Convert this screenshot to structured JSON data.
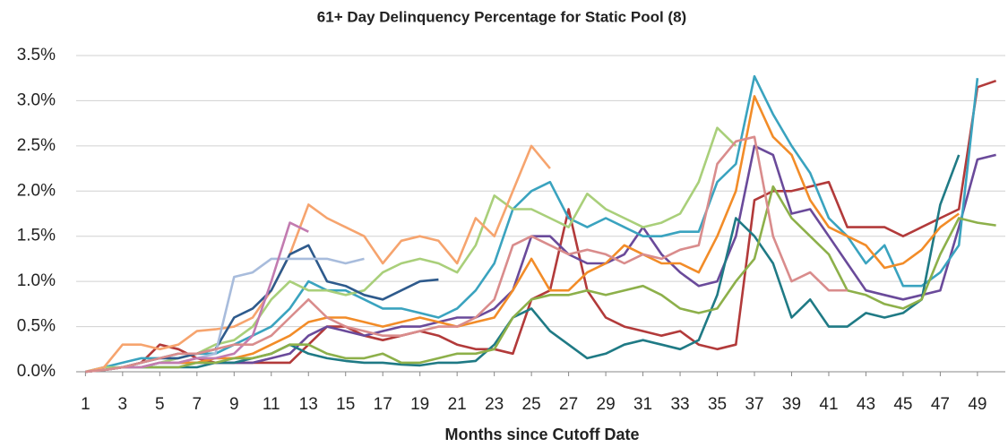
{
  "chart_data": {
    "type": "line",
    "title": "61+ Day Delinquency Percentage for Static Pool (8)",
    "x_label": "Months since Cutoff Date",
    "x": [
      1,
      2,
      3,
      4,
      5,
      6,
      7,
      8,
      9,
      10,
      11,
      12,
      13,
      14,
      15,
      16,
      17,
      18,
      19,
      20,
      21,
      22,
      23,
      24,
      25,
      26,
      27,
      28,
      29,
      30,
      31,
      32,
      33,
      34,
      35,
      36,
      37,
      38,
      39,
      40,
      41,
      42,
      43,
      44,
      45,
      46,
      47,
      48,
      49,
      50
    ],
    "xlim": [
      0.5,
      50.5
    ],
    "xticks": [
      1,
      3,
      5,
      7,
      9,
      11,
      13,
      15,
      17,
      19,
      21,
      23,
      25,
      27,
      29,
      31,
      33,
      35,
      37,
      39,
      41,
      43,
      45,
      47,
      49
    ],
    "ylim": [
      0,
      3.5
    ],
    "yticks": [
      {
        "value": 0,
        "label": "0.0%"
      },
      {
        "value": 0.5,
        "label": "0.5%"
      },
      {
        "value": 1,
        "label": "1.0%"
      },
      {
        "value": 1.5,
        "label": "1.5%"
      },
      {
        "value": 2,
        "label": "2.0%"
      },
      {
        "value": 2.5,
        "label": "2.5%"
      },
      {
        "value": 3,
        "label": "3.0%"
      },
      {
        "value": 3.5,
        "label": "3.5%"
      }
    ],
    "grid": true,
    "series": [
      {
        "color": "#b23a3a",
        "values": [
          0,
          0.02,
          0.05,
          0.1,
          0.3,
          0.25,
          0.15,
          0.1,
          0.1,
          0.1,
          0.1,
          0.1,
          0.3,
          0.5,
          0.5,
          0.4,
          0.35,
          0.4,
          0.45,
          0.4,
          0.3,
          0.25,
          0.25,
          0.2,
          0.8,
          0.9,
          1.8,
          0.9,
          0.6,
          0.5,
          0.45,
          0.4,
          0.45,
          0.3,
          0.25,
          0.3,
          1.9,
          2.0,
          2.0,
          2.05,
          2.1,
          1.6,
          1.6,
          1.6,
          1.5,
          1.6,
          1.7,
          1.8,
          3.15,
          3.22
        ]
      },
      {
        "color": "#6a4a9a",
        "values": [
          0,
          0.02,
          0.05,
          0.05,
          0.1,
          0.1,
          0.1,
          0.1,
          0.1,
          0.1,
          0.15,
          0.2,
          0.4,
          0.5,
          0.45,
          0.4,
          0.45,
          0.5,
          0.5,
          0.55,
          0.6,
          0.6,
          0.7,
          0.9,
          1.5,
          1.5,
          1.3,
          1.2,
          1.2,
          1.3,
          1.6,
          1.3,
          1.1,
          0.95,
          1.0,
          1.5,
          2.5,
          2.4,
          1.75,
          1.8,
          1.5,
          1.2,
          0.9,
          0.85,
          0.8,
          0.85,
          0.9,
          1.6,
          2.35,
          2.4
        ]
      },
      {
        "color": "#3aa3bf",
        "values": [
          0,
          0.05,
          0.1,
          0.15,
          0.15,
          0.2,
          0.2,
          0.2,
          0.3,
          0.4,
          0.5,
          0.7,
          1.0,
          0.9,
          0.9,
          0.8,
          0.7,
          0.7,
          0.65,
          0.6,
          0.7,
          0.9,
          1.2,
          1.8,
          2.0,
          2.1,
          1.7,
          1.6,
          1.7,
          1.6,
          1.5,
          1.5,
          1.55,
          1.55,
          2.1,
          2.3,
          3.27,
          2.85,
          2.5,
          2.2,
          1.7,
          1.5,
          1.2,
          1.4,
          0.95,
          0.95,
          1.1,
          1.4,
          3.25,
          null
        ]
      },
      {
        "color": "#1f7a85",
        "values": [
          0,
          0.02,
          0.05,
          0.05,
          0.05,
          0.05,
          0.05,
          0.1,
          0.1,
          0.15,
          0.2,
          0.3,
          0.2,
          0.15,
          0.12,
          0.1,
          0.1,
          0.08,
          0.07,
          0.1,
          0.1,
          0.12,
          0.3,
          0.6,
          0.7,
          0.45,
          0.3,
          0.15,
          0.2,
          0.3,
          0.35,
          0.3,
          0.25,
          0.35,
          0.85,
          1.7,
          1.5,
          1.2,
          0.6,
          0.8,
          0.5,
          0.5,
          0.65,
          0.6,
          0.65,
          0.8,
          1.85,
          2.4,
          null,
          null
        ]
      },
      {
        "color": "#f28c28",
        "values": [
          0,
          0.02,
          0.05,
          0.05,
          0.1,
          0.1,
          0.1,
          0.15,
          0.15,
          0.2,
          0.3,
          0.4,
          0.55,
          0.6,
          0.6,
          0.55,
          0.5,
          0.55,
          0.6,
          0.55,
          0.5,
          0.55,
          0.6,
          0.9,
          1.25,
          0.9,
          0.9,
          1.1,
          1.2,
          1.4,
          1.3,
          1.2,
          1.2,
          1.1,
          1.5,
          2.0,
          3.05,
          2.6,
          2.4,
          1.9,
          1.6,
          1.5,
          1.4,
          1.15,
          1.2,
          1.35,
          1.6,
          1.75,
          null,
          null
        ]
      },
      {
        "color": "#8db04a",
        "values": [
          0,
          0.02,
          0.05,
          0.05,
          0.05,
          0.05,
          0.1,
          0.1,
          0.15,
          0.15,
          0.2,
          0.3,
          0.3,
          0.2,
          0.15,
          0.15,
          0.2,
          0.1,
          0.1,
          0.15,
          0.2,
          0.2,
          0.25,
          0.6,
          0.8,
          0.85,
          0.85,
          0.9,
          0.85,
          0.9,
          0.95,
          0.85,
          0.7,
          0.65,
          0.7,
          1.0,
          1.25,
          2.05,
          1.7,
          1.5,
          1.3,
          0.9,
          0.85,
          0.75,
          0.7,
          0.8,
          1.3,
          1.7,
          1.65,
          1.62
        ]
      },
      {
        "color": "#a9cf7a",
        "values": [
          0,
          0.05,
          0.05,
          0.05,
          0.1,
          0.15,
          0.2,
          0.3,
          0.35,
          0.5,
          0.8,
          1.0,
          0.9,
          0.9,
          0.85,
          0.9,
          1.1,
          1.2,
          1.25,
          1.2,
          1.1,
          1.4,
          1.95,
          1.8,
          1.8,
          1.7,
          1.6,
          1.97,
          1.8,
          1.7,
          1.6,
          1.65,
          1.75,
          2.1,
          2.7,
          2.5,
          null,
          null,
          null,
          null,
          null,
          null,
          null,
          null,
          null,
          null,
          null,
          null,
          null,
          null
        ]
      },
      {
        "color": "#f6a46e",
        "values": [
          0,
          0.05,
          0.3,
          0.3,
          0.25,
          0.3,
          0.45,
          0.47,
          0.5,
          0.6,
          0.9,
          1.3,
          1.85,
          1.7,
          1.6,
          1.5,
          1.2,
          1.45,
          1.5,
          1.45,
          1.2,
          1.7,
          1.5,
          2.0,
          2.5,
          2.25,
          null,
          null,
          null,
          null,
          null,
          null,
          null,
          null,
          null,
          null,
          null,
          null,
          null,
          null,
          null,
          null,
          null,
          null,
          null,
          null,
          null,
          null,
          null,
          null
        ]
      },
      {
        "color": "#2e5a8c",
        "values": [
          0,
          0.02,
          0.05,
          0.1,
          0.15,
          0.15,
          0.2,
          0.25,
          0.6,
          0.7,
          0.9,
          1.3,
          1.4,
          1.0,
          0.95,
          0.85,
          0.8,
          0.9,
          1.0,
          1.02,
          null,
          null,
          null,
          null,
          null,
          null,
          null,
          null,
          null,
          null,
          null,
          null,
          null,
          null,
          null,
          null,
          null,
          null,
          null,
          null,
          null,
          null,
          null,
          null,
          null,
          null,
          null,
          null,
          null,
          null
        ]
      },
      {
        "color": "#a8bcdc",
        "values": [
          0,
          0.02,
          0.05,
          0.05,
          0.1,
          0.1,
          0.15,
          0.2,
          1.05,
          1.1,
          1.25,
          1.25,
          1.25,
          1.25,
          1.2,
          1.25,
          null,
          null,
          null,
          null,
          null,
          null,
          null,
          null,
          null,
          null,
          null,
          null,
          null,
          null,
          null,
          null,
          null,
          null,
          null,
          null,
          null,
          null,
          null,
          null,
          null,
          null,
          null,
          null,
          null,
          null,
          null,
          null,
          null,
          null
        ]
      },
      {
        "color": "#c27bb0",
        "values": [
          0,
          0.02,
          0.05,
          0.05,
          0.1,
          0.1,
          0.15,
          0.15,
          0.2,
          0.4,
          1.0,
          1.65,
          1.55,
          null,
          null,
          null,
          null,
          null,
          null,
          null,
          null,
          null,
          null,
          null,
          null,
          null,
          null,
          null,
          null,
          null,
          null,
          null,
          null,
          null,
          null,
          null,
          null,
          null,
          null,
          null,
          null,
          null,
          null,
          null,
          null,
          null,
          null,
          null,
          null,
          null
        ]
      },
      {
        "color": "#d98c8c",
        "values": [
          0,
          0.02,
          0.05,
          0.1,
          0.15,
          0.2,
          0.2,
          0.25,
          0.3,
          0.3,
          0.4,
          0.6,
          0.8,
          0.6,
          0.5,
          0.45,
          0.4,
          0.4,
          0.45,
          0.5,
          0.5,
          0.6,
          0.8,
          1.4,
          1.5,
          1.4,
          1.3,
          1.35,
          1.3,
          1.2,
          1.3,
          1.25,
          1.35,
          1.4,
          2.3,
          2.55,
          2.6,
          1.5,
          1.0,
          1.1,
          0.9,
          0.9,
          null,
          null,
          null,
          null,
          null,
          null,
          null,
          null
        ]
      }
    ]
  }
}
